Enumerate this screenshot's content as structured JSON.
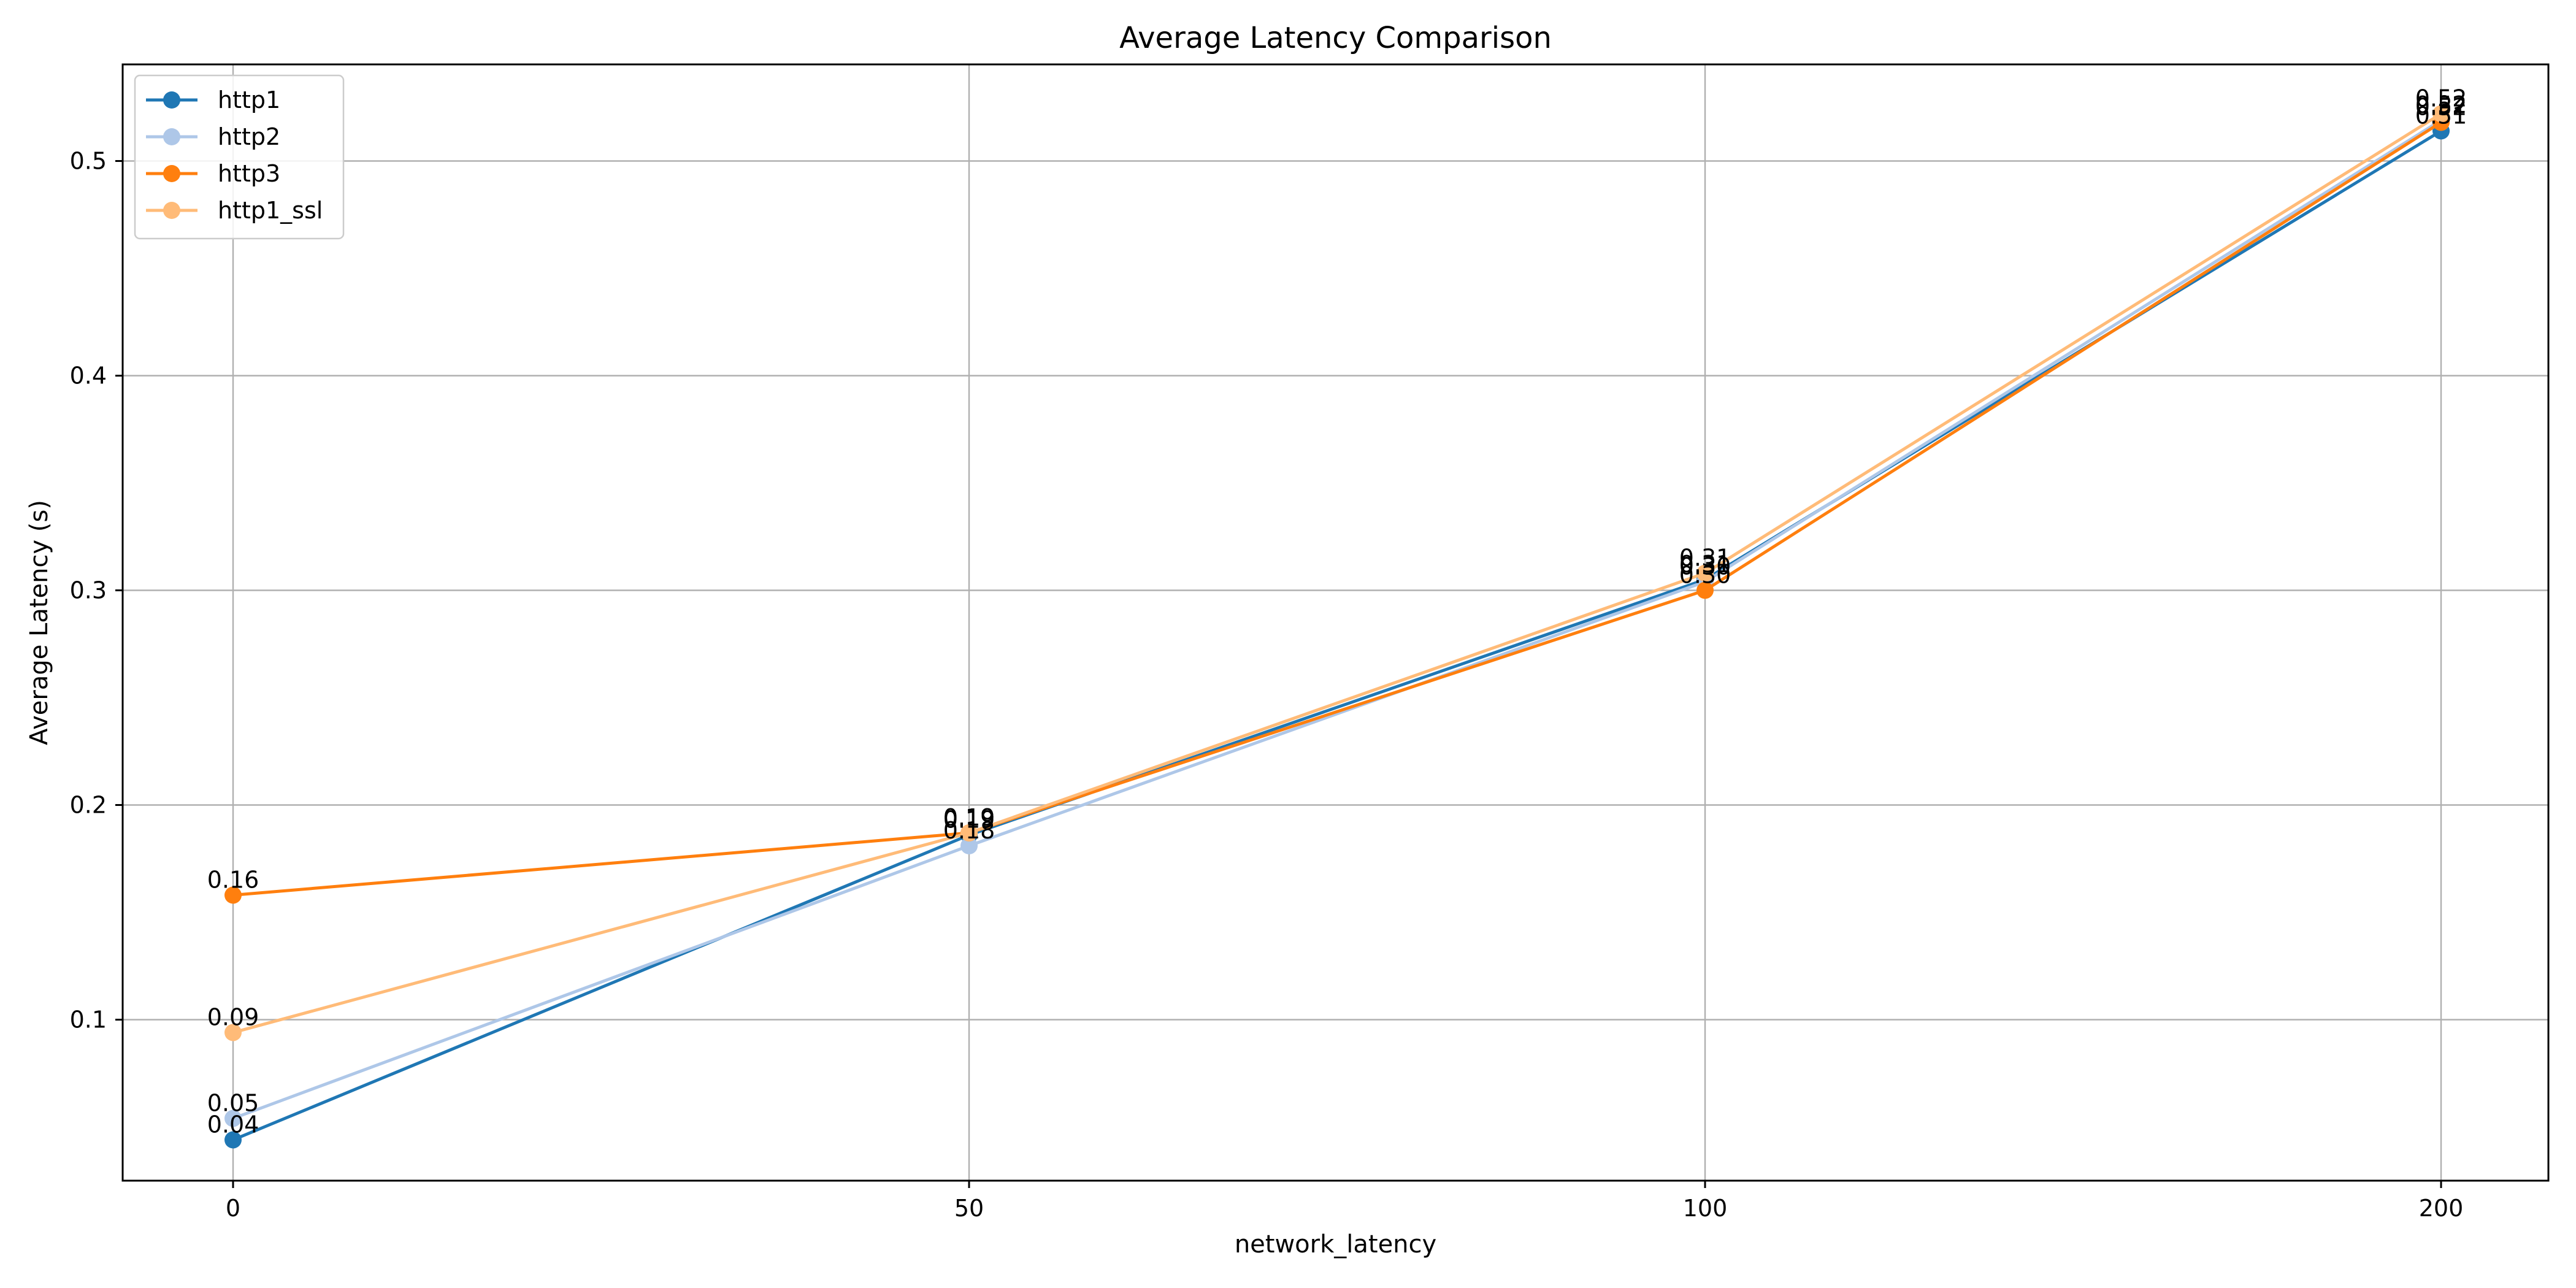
{
  "chart_data": {
    "type": "line",
    "title": "Average Latency Comparison",
    "xlabel": "network_latency",
    "ylabel": "Average Latency (s)",
    "x": [
      0,
      50,
      100,
      200
    ],
    "x_tick_labels": [
      "0",
      "50",
      "100",
      "200"
    ],
    "x_scale": "categorical",
    "ylim": [
      0.025,
      0.545
    ],
    "y_ticks": [
      0.1,
      0.2,
      0.3,
      0.4,
      0.5
    ],
    "y_tick_labels": [
      "0.1",
      "0.2",
      "0.3",
      "0.4",
      "0.5"
    ],
    "grid": true,
    "legend_position": "top-left",
    "markers": "circle",
    "series": [
      {
        "name": "http1",
        "color": "#1f77b4",
        "values": [
          0.044,
          0.186,
          0.305,
          0.514
        ],
        "labels": [
          "0.04",
          "0.19",
          "0.31",
          "0.51"
        ]
      },
      {
        "name": "http2",
        "color": "#aec7e8",
        "values": [
          0.054,
          0.181,
          0.304,
          0.519
        ],
        "labels": [
          "0.05",
          "0.18",
          "0.30",
          "0.52"
        ]
      },
      {
        "name": "http3",
        "color": "#ff7f0e",
        "values": [
          0.158,
          0.187,
          0.3,
          0.518
        ],
        "labels": [
          "0.16",
          "0.19",
          "0.30",
          "0.52"
        ]
      },
      {
        "name": "http1_ssl",
        "color": "#ffbb78",
        "values": [
          0.094,
          0.187,
          0.308,
          0.522
        ],
        "labels": [
          "0.09",
          "0.19",
          "0.31",
          "0.52"
        ]
      }
    ]
  }
}
